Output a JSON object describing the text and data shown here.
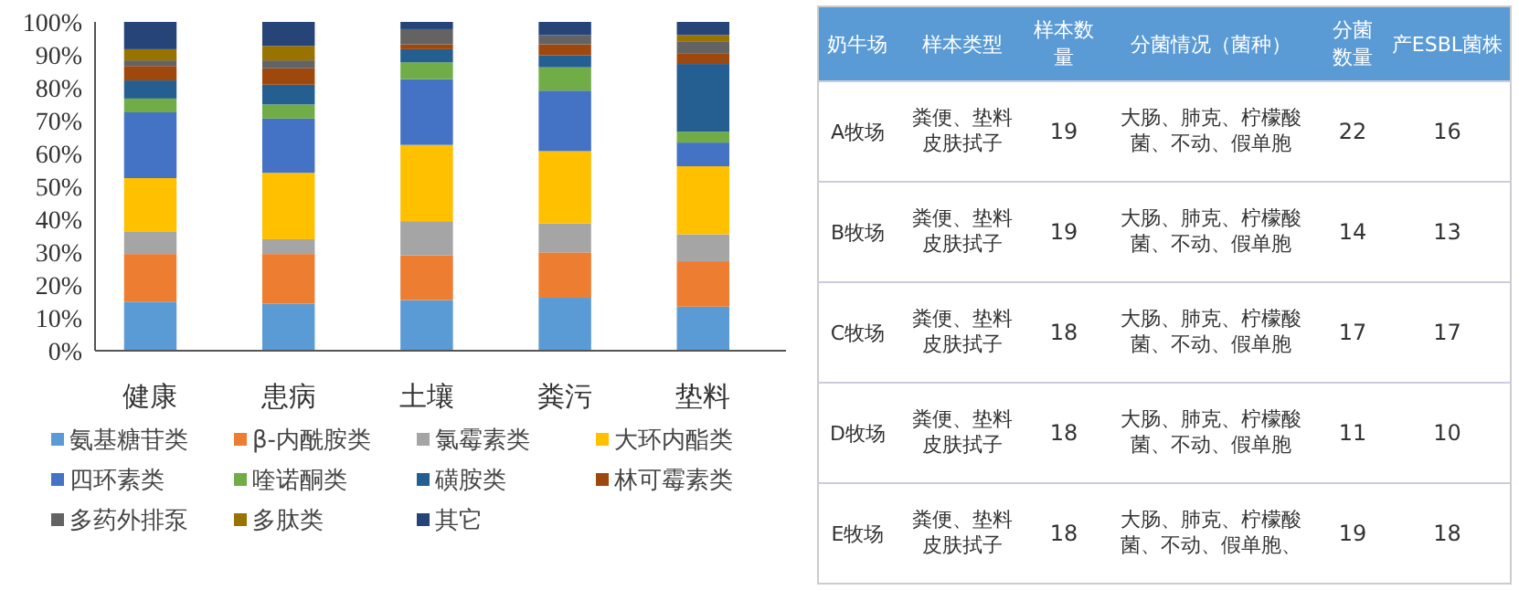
{
  "chart_data": [
    {
      "type": "bar",
      "stacked": true,
      "categories": [
        "健康",
        "患病",
        "土壤",
        "粪污",
        "垫料"
      ],
      "ylim": [
        0,
        100
      ],
      "yticks": [
        {
          "value": 0,
          "label": "0%"
        },
        {
          "value": 10,
          "label": "10%"
        },
        {
          "value": 20,
          "label": "20%"
        },
        {
          "value": 30,
          "label": "30%"
        },
        {
          "value": 40,
          "label": "40%"
        },
        {
          "value": 50,
          "label": "50%"
        },
        {
          "value": 60,
          "label": "60%"
        },
        {
          "value": 70,
          "label": "70%"
        },
        {
          "value": 80,
          "label": "80%"
        },
        {
          "value": 90,
          "label": "90%"
        },
        {
          "value": 100,
          "label": "100%"
        }
      ],
      "legend": "bottom",
      "series": [
        {
          "name": "氨基糖苷类",
          "color": "#5b9bd5",
          "values": [
            14.9,
            14.3,
            15.4,
            16.1,
            13.4
          ]
        },
        {
          "name": "β-内酰胺类",
          "color": "#ed7d31",
          "values": [
            14.5,
            15.1,
            13.6,
            13.8,
            13.8
          ]
        },
        {
          "name": "氯霉素类",
          "color": "#a5a5a5",
          "values": [
            6.9,
            4.5,
            10.4,
            8.8,
            8.2
          ]
        },
        {
          "name": "大环内酯类",
          "color": "#ffc000",
          "values": [
            16.2,
            20.2,
            23.2,
            22.0,
            20.7
          ]
        },
        {
          "name": "四环素类",
          "color": "#4472c4",
          "values": [
            20.0,
            16.5,
            20.0,
            18.4,
            7.2
          ]
        },
        {
          "name": "喹诺酮类",
          "color": "#70ad47",
          "values": [
            4.2,
            4.3,
            5.1,
            7.1,
            3.3
          ]
        },
        {
          "name": "磺胺类",
          "color": "#255e91",
          "values": [
            5.5,
            6.0,
            4.0,
            3.7,
            20.6
          ]
        },
        {
          "name": "林可霉素类",
          "color": "#9e480e",
          "values": [
            4.4,
            5.0,
            1.5,
            3.3,
            3.3
          ]
        },
        {
          "name": "多药外排泵",
          "color": "#636363",
          "values": [
            1.7,
            2.4,
            4.6,
            2.8,
            3.6
          ]
        },
        {
          "name": "多肽类",
          "color": "#997300",
          "values": [
            3.4,
            4.4,
            0,
            0,
            1.9
          ]
        },
        {
          "name": "其它",
          "color": "#264478",
          "values": [
            8.3,
            7.3,
            2.2,
            4.0,
            4.0
          ]
        }
      ]
    },
    {
      "type": "other",
      "categories": [
        "奶牛场",
        "样本类型",
        "样本数量",
        "分菌情况（菌种）",
        "分菌数量",
        "产ESBL菌株"
      ],
      "cell_labels": [
        [
          "A牧场",
          "粪便、垫料皮肤拭子",
          "19",
          "大肠、肺克、柠檬酸菌、不动、假单胞",
          "22",
          "16"
        ],
        [
          "B牧场",
          "粪便、垫料皮肤拭子",
          "19",
          "大肠、肺克、柠檬酸菌、不动、假单胞",
          "14",
          "13"
        ],
        [
          "C牧场",
          "粪便、垫料皮肤拭子",
          "18",
          "大肠、肺克、柠檬酸菌、不动、假单胞",
          "17",
          "17"
        ],
        [
          "D牧场",
          "粪便、垫料皮肤拭子",
          "18",
          "大肠、肺克、柠檬酸菌、不动、假单胞",
          "11",
          "10"
        ],
        [
          "E牧场",
          "粪便、垫料皮肤拭子",
          "18",
          "大肠、肺克、柠檬酸菌、不动、假单胞、",
          "19",
          "18"
        ]
      ]
    }
  ]
}
